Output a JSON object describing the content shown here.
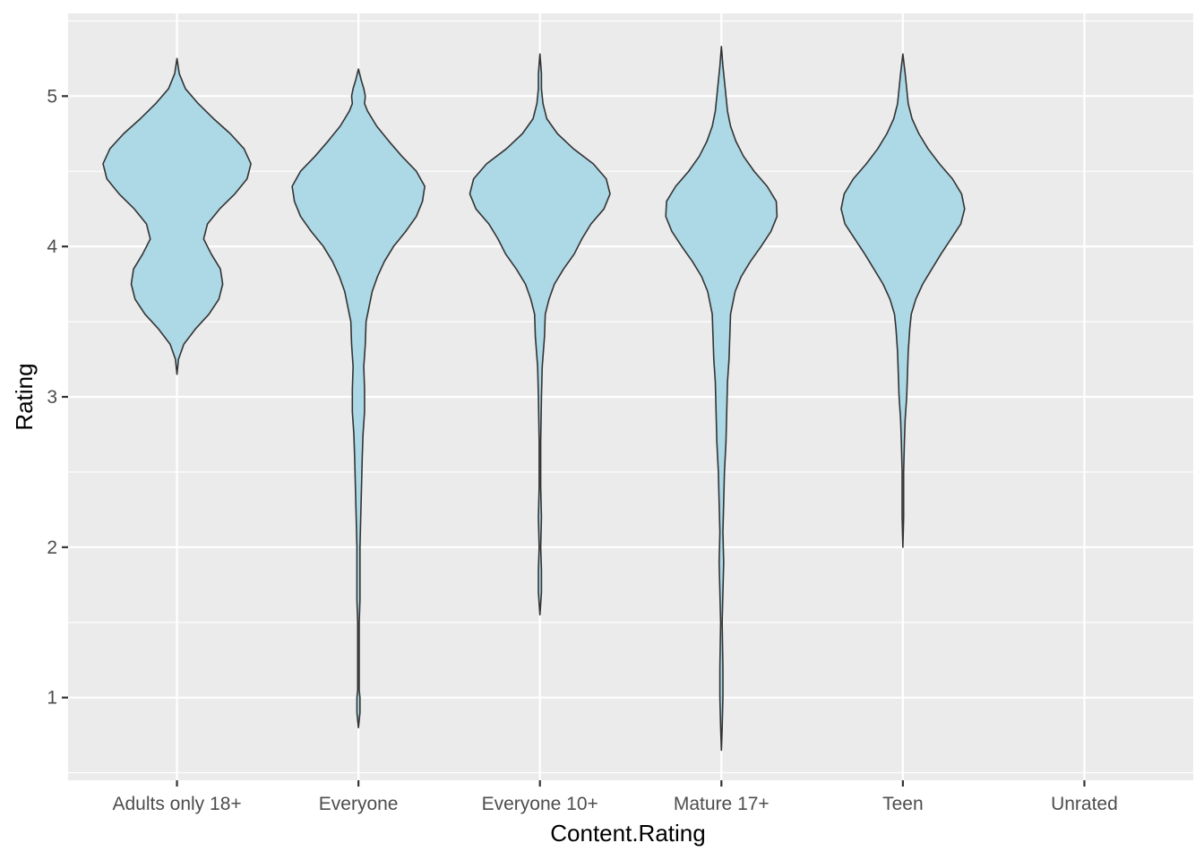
{
  "chart_data": {
    "type": "violin",
    "xlabel": "Content.Rating",
    "ylabel": "Rating",
    "categories": [
      "Adults only 18+",
      "Everyone",
      "Everyone 10+",
      "Mature 17+",
      "Teen",
      "Unrated"
    ],
    "ylim": [
      0.45,
      5.55
    ],
    "yticks": [
      1,
      2,
      3,
      4,
      5
    ],
    "grid": true,
    "legend": "none",
    "colors": {
      "panel": "#ebebeb",
      "grid": "#ffffff",
      "fill": "#add8e6",
      "outline": "#333333"
    },
    "violins": [
      {
        "category": "Adults only 18+",
        "density": [
          [
            3.15,
            0.0
          ],
          [
            3.25,
            0.02
          ],
          [
            3.35,
            0.09
          ],
          [
            3.45,
            0.24
          ],
          [
            3.55,
            0.42
          ],
          [
            3.65,
            0.55
          ],
          [
            3.75,
            0.6
          ],
          [
            3.85,
            0.57
          ],
          [
            3.95,
            0.45
          ],
          [
            4.05,
            0.35
          ],
          [
            4.15,
            0.4
          ],
          [
            4.25,
            0.56
          ],
          [
            4.35,
            0.76
          ],
          [
            4.45,
            0.92
          ],
          [
            4.55,
            0.97
          ],
          [
            4.65,
            0.88
          ],
          [
            4.75,
            0.7
          ],
          [
            4.85,
            0.48
          ],
          [
            4.95,
            0.28
          ],
          [
            5.05,
            0.11
          ],
          [
            5.15,
            0.03
          ],
          [
            5.25,
            0.0
          ]
        ]
      },
      {
        "category": "Everyone",
        "density": [
          [
            0.8,
            0.0
          ],
          [
            0.9,
            0.02
          ],
          [
            0.95,
            0.02
          ],
          [
            1.0,
            0.02
          ],
          [
            1.05,
            0.01
          ],
          [
            1.2,
            0.01
          ],
          [
            1.5,
            0.01
          ],
          [
            1.65,
            0.02
          ],
          [
            1.8,
            0.02
          ],
          [
            2.0,
            0.02
          ],
          [
            2.2,
            0.03
          ],
          [
            2.4,
            0.04
          ],
          [
            2.6,
            0.05
          ],
          [
            2.75,
            0.06
          ],
          [
            2.9,
            0.08
          ],
          [
            3.05,
            0.08
          ],
          [
            3.2,
            0.07
          ],
          [
            3.35,
            0.09
          ],
          [
            3.5,
            0.1
          ],
          [
            3.6,
            0.14
          ],
          [
            3.7,
            0.18
          ],
          [
            3.8,
            0.25
          ],
          [
            3.9,
            0.34
          ],
          [
            4.0,
            0.46
          ],
          [
            4.1,
            0.62
          ],
          [
            4.2,
            0.76
          ],
          [
            4.3,
            0.84
          ],
          [
            4.4,
            0.87
          ],
          [
            4.5,
            0.76
          ],
          [
            4.6,
            0.57
          ],
          [
            4.7,
            0.4
          ],
          [
            4.8,
            0.24
          ],
          [
            4.9,
            0.12
          ],
          [
            4.95,
            0.08
          ],
          [
            5.0,
            0.09
          ],
          [
            5.05,
            0.07
          ],
          [
            5.1,
            0.04
          ],
          [
            5.18,
            0.0
          ]
        ]
      },
      {
        "category": "Everyone 10+",
        "density": [
          [
            1.55,
            0.0
          ],
          [
            1.7,
            0.02
          ],
          [
            1.85,
            0.02
          ],
          [
            2.0,
            0.01
          ],
          [
            2.2,
            0.02
          ],
          [
            2.4,
            0.01
          ],
          [
            2.7,
            0.01
          ],
          [
            3.0,
            0.02
          ],
          [
            3.2,
            0.03
          ],
          [
            3.4,
            0.06
          ],
          [
            3.55,
            0.07
          ],
          [
            3.65,
            0.12
          ],
          [
            3.75,
            0.19
          ],
          [
            3.85,
            0.31
          ],
          [
            3.95,
            0.45
          ],
          [
            4.05,
            0.55
          ],
          [
            4.15,
            0.67
          ],
          [
            4.25,
            0.84
          ],
          [
            4.35,
            0.92
          ],
          [
            4.45,
            0.87
          ],
          [
            4.55,
            0.7
          ],
          [
            4.65,
            0.44
          ],
          [
            4.75,
            0.23
          ],
          [
            4.85,
            0.09
          ],
          [
            4.95,
            0.04
          ],
          [
            5.05,
            0.02
          ],
          [
            5.15,
            0.02
          ],
          [
            5.28,
            0.0
          ]
        ]
      },
      {
        "category": "Mature 17+",
        "density": [
          [
            0.65,
            0.0
          ],
          [
            0.8,
            0.01
          ],
          [
            1.0,
            0.02
          ],
          [
            1.2,
            0.02
          ],
          [
            1.5,
            0.01
          ],
          [
            1.7,
            0.02
          ],
          [
            1.9,
            0.03
          ],
          [
            2.1,
            0.02
          ],
          [
            2.3,
            0.03
          ],
          [
            2.5,
            0.04
          ],
          [
            2.7,
            0.06
          ],
          [
            2.9,
            0.07
          ],
          [
            3.1,
            0.08
          ],
          [
            3.25,
            0.1
          ],
          [
            3.4,
            0.11
          ],
          [
            3.55,
            0.12
          ],
          [
            3.7,
            0.18
          ],
          [
            3.8,
            0.26
          ],
          [
            3.9,
            0.38
          ],
          [
            4.0,
            0.52
          ],
          [
            4.1,
            0.65
          ],
          [
            4.2,
            0.73
          ],
          [
            4.3,
            0.72
          ],
          [
            4.4,
            0.6
          ],
          [
            4.5,
            0.43
          ],
          [
            4.6,
            0.29
          ],
          [
            4.7,
            0.19
          ],
          [
            4.8,
            0.12
          ],
          [
            4.9,
            0.08
          ],
          [
            5.0,
            0.06
          ],
          [
            5.1,
            0.04
          ],
          [
            5.2,
            0.02
          ],
          [
            5.33,
            0.0
          ]
        ]
      },
      {
        "category": "Teen",
        "density": [
          [
            2.0,
            0.0
          ],
          [
            2.2,
            0.01
          ],
          [
            2.5,
            0.01
          ],
          [
            2.7,
            0.02
          ],
          [
            2.85,
            0.03
          ],
          [
            3.0,
            0.05
          ],
          [
            3.15,
            0.06
          ],
          [
            3.3,
            0.07
          ],
          [
            3.45,
            0.09
          ],
          [
            3.55,
            0.11
          ],
          [
            3.65,
            0.17
          ],
          [
            3.75,
            0.26
          ],
          [
            3.85,
            0.38
          ],
          [
            3.95,
            0.5
          ],
          [
            4.05,
            0.63
          ],
          [
            4.15,
            0.76
          ],
          [
            4.25,
            0.81
          ],
          [
            4.35,
            0.77
          ],
          [
            4.45,
            0.65
          ],
          [
            4.55,
            0.48
          ],
          [
            4.65,
            0.33
          ],
          [
            4.75,
            0.21
          ],
          [
            4.85,
            0.12
          ],
          [
            4.95,
            0.07
          ],
          [
            5.05,
            0.05
          ],
          [
            5.15,
            0.03
          ],
          [
            5.28,
            0.0
          ]
        ]
      }
    ]
  }
}
